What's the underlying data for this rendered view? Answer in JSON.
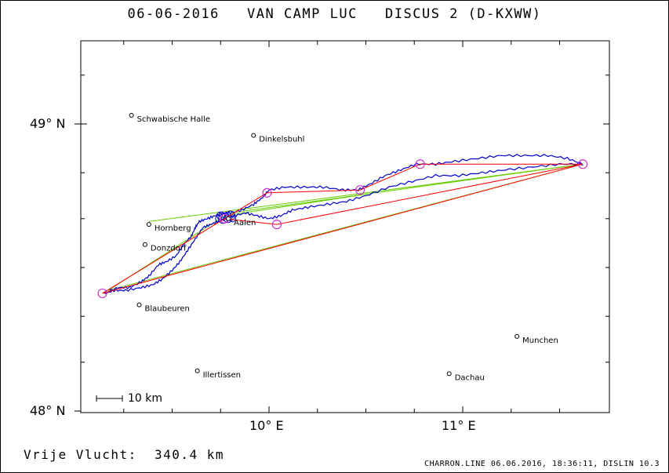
{
  "title": "06-06-2016   VAN CAMP LUC   DISCUS 2 (D-KXWW)",
  "footer_left": "Vrije Vlucht:  340.4 km",
  "footer_right": "CHARRON.LINE 06.06.2016, 18:36:11, DISLIN 10.3",
  "axes": {
    "lat_labels": [
      {
        "label": "49° N",
        "lat": 49.0
      },
      {
        "label": "48° N",
        "lat": 48.0
      }
    ],
    "lon_labels": [
      {
        "label": "10° E",
        "lon": 10.0
      },
      {
        "label": "11° E",
        "lon": 11.0
      }
    ],
    "lon_range": [
      9.0,
      11.75
    ],
    "lat_range": [
      48.0,
      49.29
    ]
  },
  "scale_bar": {
    "label": "10 km"
  },
  "towns": [
    {
      "name": "Schwabische Halle",
      "lon": 9.29,
      "lat": 49.03
    },
    {
      "name": "Dinkelsbuhl",
      "lon": 9.92,
      "lat": 48.96
    },
    {
      "name": "Hornberg",
      "lon": 9.38,
      "lat": 48.65
    },
    {
      "name": "Donzdorf",
      "lon": 9.36,
      "lat": 48.58
    },
    {
      "name": "Aalen",
      "lon": 9.79,
      "lat": 48.67
    },
    {
      "name": "Blaubeuren",
      "lon": 9.33,
      "lat": 48.37
    },
    {
      "name": "Illertissen",
      "lon": 9.63,
      "lat": 48.14
    },
    {
      "name": "Dachau",
      "lon": 10.93,
      "lat": 48.13
    },
    {
      "name": "Munchen",
      "lon": 11.28,
      "lat": 48.26
    }
  ],
  "colors": {
    "track": "#0000cc",
    "route": "#ff0000",
    "triangle": "#66cc00",
    "turnpoint": "#cc33cc",
    "frame": "#000000"
  },
  "turnpoints": [
    {
      "lon": 9.14,
      "lat": 48.41
    },
    {
      "lon": 9.77,
      "lat": 48.67
    },
    {
      "lon": 9.99,
      "lat": 48.76
    },
    {
      "lon": 10.04,
      "lat": 48.65
    },
    {
      "lon": 10.47,
      "lat": 48.77
    },
    {
      "lon": 10.78,
      "lat": 48.86
    },
    {
      "lon": 11.62,
      "lat": 48.86
    }
  ],
  "route": [
    [
      9.14,
      48.41
    ],
    [
      9.77,
      48.67
    ],
    [
      9.99,
      48.76
    ],
    [
      10.47,
      48.77
    ],
    [
      10.78,
      48.86
    ],
    [
      11.62,
      48.86
    ],
    [
      10.04,
      48.65
    ],
    [
      9.77,
      48.67
    ],
    [
      9.14,
      48.41
    ],
    [
      11.62,
      48.86
    ]
  ],
  "triangle": [
    [
      9.38,
      48.66
    ],
    [
      11.62,
      48.86
    ],
    [
      9.8,
      48.69
    ],
    [
      10.55,
      48.76
    ],
    [
      9.77,
      48.68
    ],
    [
      9.17,
      48.42
    ],
    [
      11.62,
      48.86
    ]
  ],
  "track": [
    [
      9.15,
      48.41
    ],
    [
      9.22,
      48.43
    ],
    [
      9.28,
      48.43
    ],
    [
      9.34,
      48.45
    ],
    [
      9.38,
      48.47
    ],
    [
      9.43,
      48.51
    ],
    [
      9.47,
      48.52
    ],
    [
      9.52,
      48.54
    ],
    [
      9.56,
      48.58
    ],
    [
      9.6,
      48.61
    ],
    [
      9.62,
      48.64
    ],
    [
      9.64,
      48.66
    ],
    [
      9.68,
      48.67
    ],
    [
      9.72,
      48.68
    ],
    [
      9.76,
      48.69
    ],
    [
      9.8,
      48.69
    ],
    [
      9.86,
      48.7
    ],
    [
      9.92,
      48.72
    ],
    [
      9.96,
      48.74
    ],
    [
      10.0,
      48.77
    ],
    [
      10.08,
      48.78
    ],
    [
      10.18,
      48.78
    ],
    [
      10.28,
      48.78
    ],
    [
      10.38,
      48.77
    ],
    [
      10.46,
      48.77
    ],
    [
      10.52,
      48.79
    ],
    [
      10.6,
      48.82
    ],
    [
      10.68,
      48.84
    ],
    [
      10.76,
      48.86
    ],
    [
      10.86,
      48.86
    ],
    [
      10.96,
      48.87
    ],
    [
      11.08,
      48.88
    ],
    [
      11.2,
      48.89
    ],
    [
      11.32,
      48.89
    ],
    [
      11.44,
      48.89
    ],
    [
      11.54,
      48.88
    ],
    [
      11.62,
      48.86
    ],
    [
      11.5,
      48.86
    ],
    [
      11.36,
      48.85
    ],
    [
      11.22,
      48.84
    ],
    [
      11.1,
      48.83
    ],
    [
      10.98,
      48.82
    ],
    [
      10.86,
      48.82
    ],
    [
      10.74,
      48.8
    ],
    [
      10.62,
      48.78
    ],
    [
      10.5,
      48.75
    ],
    [
      10.4,
      48.73
    ],
    [
      10.3,
      48.72
    ],
    [
      10.2,
      48.71
    ],
    [
      10.12,
      48.7
    ],
    [
      10.06,
      48.68
    ],
    [
      10.0,
      48.67
    ],
    [
      9.94,
      48.68
    ],
    [
      9.88,
      48.69
    ],
    [
      9.82,
      48.68
    ],
    [
      9.78,
      48.67
    ],
    [
      9.74,
      48.66
    ],
    [
      9.7,
      48.65
    ],
    [
      9.66,
      48.64
    ],
    [
      9.62,
      48.6
    ],
    [
      9.58,
      48.56
    ],
    [
      9.54,
      48.52
    ],
    [
      9.5,
      48.49
    ],
    [
      9.45,
      48.46
    ],
    [
      9.4,
      48.44
    ],
    [
      9.34,
      48.43
    ],
    [
      9.26,
      48.42
    ],
    [
      9.2,
      48.42
    ],
    [
      9.15,
      48.41
    ]
  ]
}
